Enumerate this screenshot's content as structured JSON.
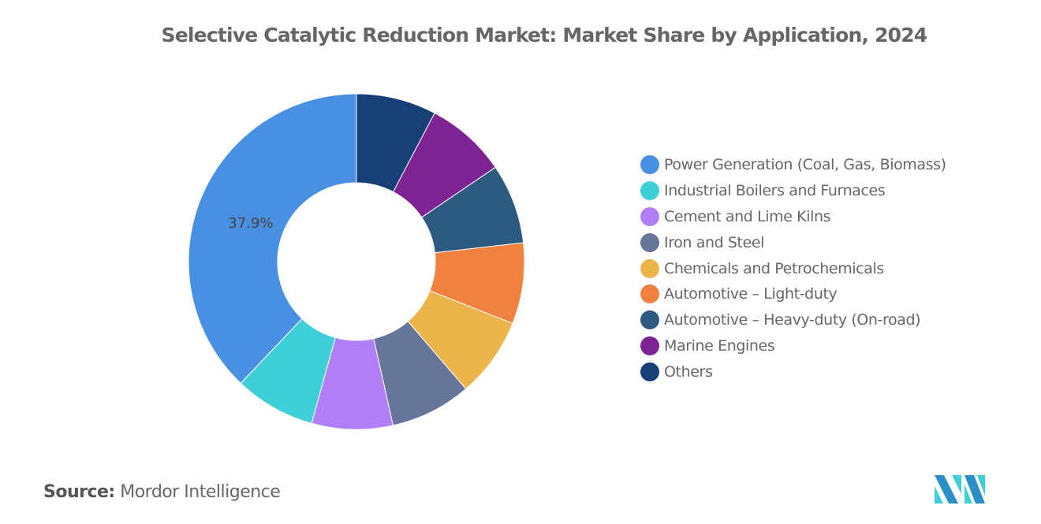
{
  "chart_data": {
    "type": "pie",
    "subtype": "donut",
    "title": "Selective Catalytic Reduction Market: Market Share by Application, 2024",
    "categories": [
      "Power Generation (Coal, Gas, Biomass)",
      "Industrial Boilers and Furnaces",
      "Cement and Lime Kilns",
      "Iron and Steel",
      "Chemicals and Petrochemicals",
      "Automotive – Light-duty",
      "Automotive – Heavy-duty (On-road)",
      "Marine Engines",
      "Others"
    ],
    "values": [
      37.9,
      7.8,
      7.8,
      7.8,
      7.7,
      7.8,
      7.7,
      7.8,
      7.7
    ],
    "colors": [
      "#4a90e2",
      "#3ecfd8",
      "#b07ff7",
      "#65769a",
      "#ebb54b",
      "#f0813f",
      "#2c5a80",
      "#7d2394",
      "#173f75"
    ],
    "data_labels": [
      "37.9%",
      "",
      "",
      "",
      "",
      "",
      "",
      "",
      ""
    ],
    "legend_position": "right"
  },
  "source": {
    "label": "Source:",
    "value": "Mordor Intelligence"
  }
}
